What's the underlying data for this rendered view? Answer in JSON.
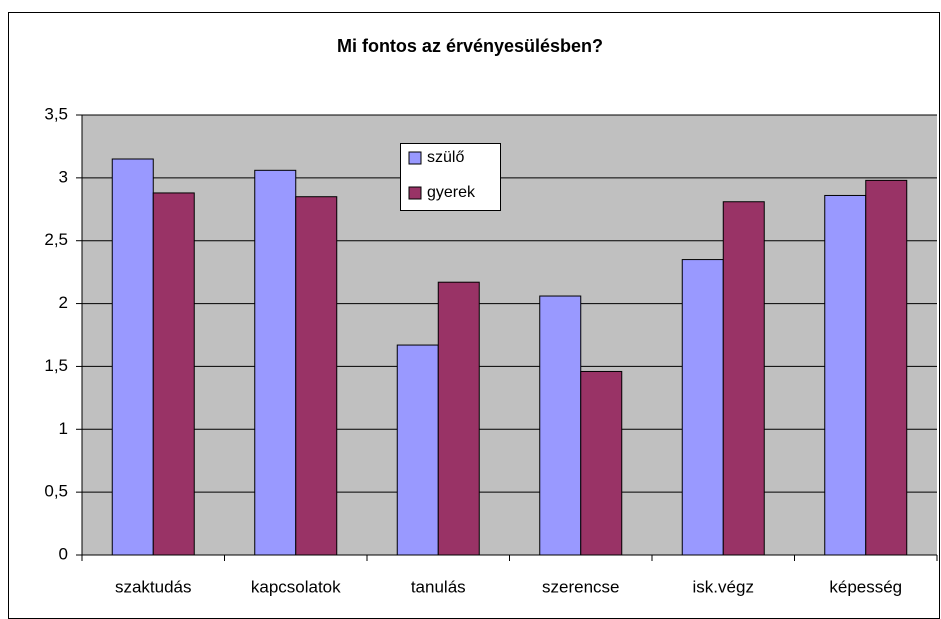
{
  "chart_data": {
    "type": "bar",
    "title": "Mi fontos az érvényesülésben?",
    "categories": [
      "szaktudás",
      "kapcsolatok",
      "tanulás",
      "szerencse",
      "isk.végz",
      "képesség"
    ],
    "series": [
      {
        "name": "szülő",
        "color": "#9999ff",
        "values": [
          3.15,
          3.06,
          1.67,
          2.06,
          2.35,
          2.86
        ]
      },
      {
        "name": "gyerek",
        "color": "#993366",
        "values": [
          2.88,
          2.85,
          2.17,
          1.46,
          2.81,
          2.98
        ]
      }
    ],
    "ylim": [
      0,
      3.5
    ],
    "yticks": [
      0,
      {
        "value": 0.5,
        "label": "0,5"
      },
      1,
      {
        "value": 1.5,
        "label": "1,5"
      },
      2,
      {
        "value": 2.5,
        "label": "2,5"
      },
      3,
      {
        "value": 3.5,
        "label": "3,5"
      }
    ],
    "grid": true,
    "legend": "top"
  }
}
